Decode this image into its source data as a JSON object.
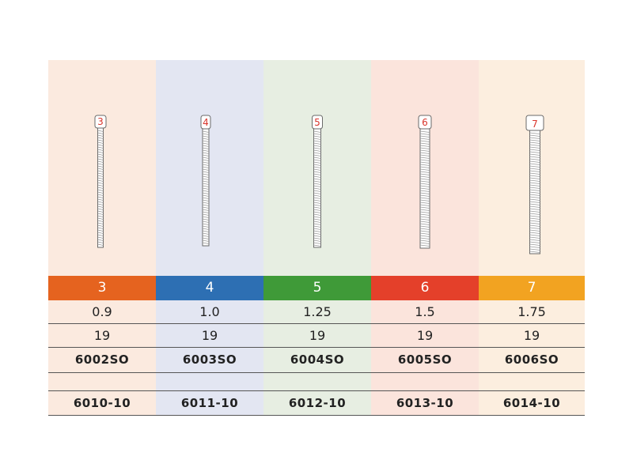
{
  "columns": [
    {
      "size": "3",
      "bg": "#fbeadf",
      "header_color": "#e5631f",
      "diameter": "0.9",
      "length": "19",
      "code": "6002SO",
      "pack_code": "6010-10"
    },
    {
      "size": "4",
      "bg": "#e3e6f2",
      "header_color": "#2d6fb3",
      "diameter": "1.0",
      "length": "19",
      "code": "6003SO",
      "pack_code": "6011-10"
    },
    {
      "size": "5",
      "bg": "#e7eee2",
      "header_color": "#3f9a38",
      "diameter": "1.25",
      "length": "19",
      "code": "6004SO",
      "pack_code": "6012-10"
    },
    {
      "size": "6",
      "bg": "#fbe4dc",
      "header_color": "#e4402a",
      "diameter": "1.5",
      "length": "19",
      "code": "6005SO",
      "pack_code": "6013-10"
    },
    {
      "size": "7",
      "bg": "#fceedf",
      "header_color": "#f2a321",
      "diameter": "1.75",
      "length": "19",
      "code": "6006SO",
      "pack_code": "6014-10"
    }
  ],
  "colors": {
    "pin_number": "#d9342b",
    "pin_stroke": "#6a6a6a",
    "rule_line": "#555555"
  }
}
